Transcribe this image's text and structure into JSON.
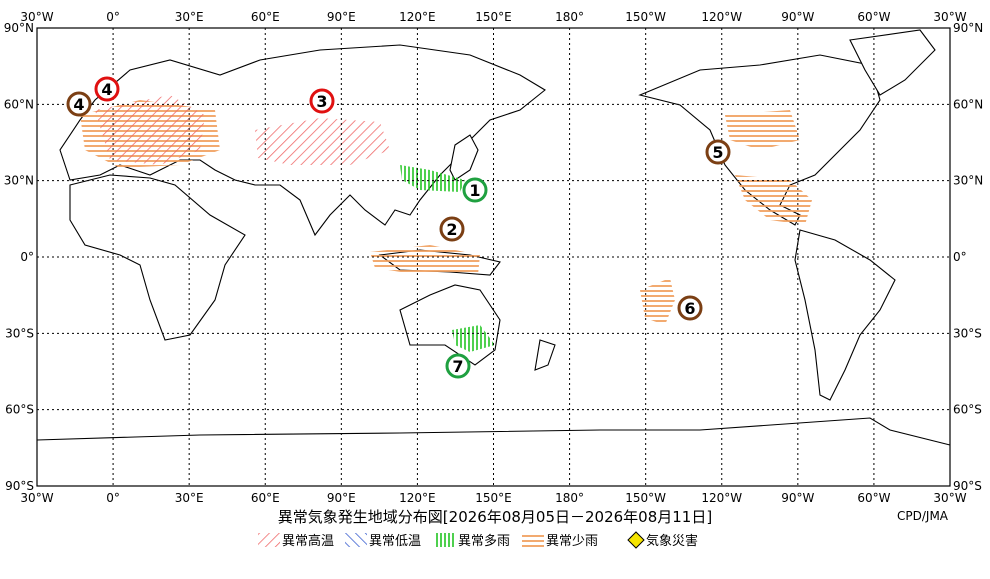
{
  "map": {
    "lon_labels": [
      "30°W",
      "0°",
      "30°E",
      "60°E",
      "90°E",
      "120°E",
      "150°E",
      "180°",
      "150°W",
      "120°W",
      "90°W",
      "60°W",
      "30°W"
    ],
    "lat_labels": [
      "90°N",
      "60°N",
      "30°N",
      "0°",
      "30°S",
      "60°S",
      "90°S"
    ],
    "markers": [
      {
        "label": "1",
        "color": "#1fa040"
      },
      {
        "label": "2",
        "color": "#7b3f14"
      },
      {
        "label": "3",
        "color": "#e01010"
      },
      {
        "label": "4",
        "color": "#e01010"
      },
      {
        "label": "4",
        "color": "#7b3f14"
      },
      {
        "label": "5",
        "color": "#7b3f14"
      },
      {
        "label": "6",
        "color": "#7b3f14"
      },
      {
        "label": "7",
        "color": "#1fa040"
      }
    ]
  },
  "title": "異常気象発生地域分布図[2026年08月05日－2026年08月11日]",
  "credit": "CPD/JMA",
  "legend": [
    "異常高温",
    "異常低温",
    "異常多雨",
    "異常少雨",
    "気象災害"
  ]
}
